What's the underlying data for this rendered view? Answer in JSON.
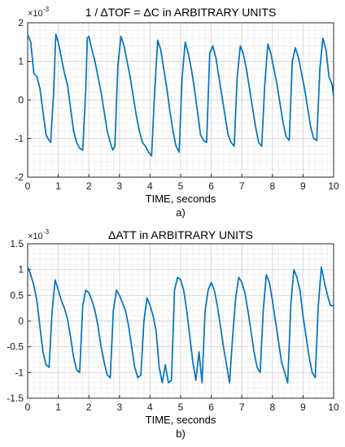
{
  "chart_data": [
    {
      "type": "line",
      "title": "1 / ΔTOF = ΔC in ARBITRARY UNITS",
      "xlabel": "TIME, seconds",
      "panel_label": "a)",
      "y_exponent": "×10",
      "y_exponent_power": "-3",
      "xlim": [
        0,
        10
      ],
      "ylim": [
        -2,
        2
      ],
      "x_ticks": [
        "0",
        "1",
        "2",
        "3",
        "4",
        "5",
        "6",
        "7",
        "8",
        "9",
        "10"
      ],
      "y_ticks": [
        "-2",
        "-1",
        "0",
        "1",
        "2"
      ],
      "grid": true,
      "minor_grid": true,
      "line_color": "#0072BD",
      "series": [
        {
          "x": [
            0.0,
            0.1,
            0.2,
            0.3,
            0.4,
            0.5,
            0.6,
            0.7,
            0.75,
            0.85,
            0.92,
            1.0,
            1.1,
            1.2,
            1.3,
            1.4,
            1.5,
            1.6,
            1.7,
            1.8,
            1.9,
            1.95,
            2.0,
            2.1,
            2.2,
            2.3,
            2.4,
            2.5,
            2.6,
            2.7,
            2.78,
            2.85,
            2.95,
            3.05,
            3.15,
            3.25,
            3.35,
            3.45,
            3.55,
            3.65,
            3.75,
            3.85,
            3.95,
            4.05,
            4.15,
            4.25,
            4.35,
            4.45,
            4.55,
            4.65,
            4.75,
            4.85,
            4.95,
            5.05,
            5.15,
            5.25,
            5.35,
            5.45,
            5.55,
            5.65,
            5.75,
            5.85,
            5.95,
            6.05,
            6.15,
            6.25,
            6.35,
            6.45,
            6.55,
            6.65,
            6.75,
            6.85,
            6.95,
            7.05,
            7.15,
            7.25,
            7.35,
            7.45,
            7.55,
            7.65,
            7.75,
            7.85,
            7.95,
            8.05,
            8.15,
            8.25,
            8.35,
            8.45,
            8.55,
            8.65,
            8.75,
            8.85,
            8.95,
            9.05,
            9.15,
            9.25,
            9.35,
            9.45,
            9.55,
            9.65,
            9.75,
            9.85,
            9.95,
            10.0
          ],
          "y": [
            1.7,
            1.5,
            0.7,
            0.6,
            0.3,
            -0.3,
            -0.9,
            -1.05,
            -1.1,
            0.2,
            1.7,
            1.5,
            1.1,
            0.7,
            0.4,
            -0.2,
            -0.8,
            -1.1,
            -1.25,
            -1.3,
            0.3,
            1.6,
            1.65,
            1.3,
            1.0,
            0.6,
            0.2,
            -0.3,
            -0.8,
            -1.1,
            -1.3,
            -1.2,
            0.9,
            1.65,
            1.4,
            1.0,
            0.6,
            0.1,
            -0.4,
            -0.8,
            -1.1,
            -1.2,
            -1.35,
            -1.45,
            0.2,
            1.55,
            1.3,
            0.8,
            0.3,
            -0.3,
            -0.8,
            -1.2,
            -1.35,
            0.6,
            1.5,
            1.2,
            0.8,
            0.3,
            -0.3,
            -0.9,
            -1.05,
            -1.1,
            1.2,
            1.4,
            1.1,
            0.6,
            0.1,
            -0.4,
            -0.9,
            -1.1,
            -1.2,
            0.6,
            1.4,
            1.2,
            0.8,
            0.3,
            -0.2,
            -0.7,
            -1.1,
            -1.2,
            0.4,
            1.45,
            1.2,
            0.8,
            0.4,
            -0.1,
            -0.6,
            -0.95,
            -1.05,
            1.0,
            1.35,
            1.1,
            0.7,
            0.3,
            -0.2,
            -0.7,
            -1.0,
            -1.05,
            0.8,
            1.6,
            1.3,
            0.6,
            0.4,
            0.1
          ]
        }
      ]
    },
    {
      "type": "line",
      "title": "ΔATT in ARBITRARY UNITS",
      "xlabel": "TIME, seconds",
      "panel_label": "b)",
      "y_exponent": "×10",
      "y_exponent_power": "-3",
      "xlim": [
        0,
        10
      ],
      "ylim": [
        -1.5,
        1.5
      ],
      "x_ticks": [
        "0",
        "1",
        "2",
        "3",
        "4",
        "5",
        "6",
        "7",
        "8",
        "9",
        "10"
      ],
      "y_ticks": [
        "-1.5",
        "-1",
        "-0.5",
        "0",
        "0.5",
        "1",
        "1.5"
      ],
      "grid": true,
      "minor_grid": true,
      "line_color": "#0072BD",
      "series": [
        {
          "x": [
            0.0,
            0.1,
            0.2,
            0.3,
            0.4,
            0.5,
            0.6,
            0.7,
            0.8,
            0.9,
            1.0,
            1.1,
            1.2,
            1.3,
            1.4,
            1.5,
            1.6,
            1.7,
            1.8,
            1.9,
            2.0,
            2.1,
            2.2,
            2.3,
            2.4,
            2.5,
            2.6,
            2.7,
            2.8,
            2.9,
            3.0,
            3.1,
            3.2,
            3.3,
            3.4,
            3.5,
            3.6,
            3.7,
            3.8,
            3.9,
            4.0,
            4.1,
            4.2,
            4.3,
            4.4,
            4.5,
            4.6,
            4.7,
            4.8,
            4.9,
            5.0,
            5.1,
            5.2,
            5.3,
            5.4,
            5.5,
            5.6,
            5.7,
            5.8,
            5.9,
            6.0,
            6.1,
            6.2,
            6.3,
            6.4,
            6.5,
            6.6,
            6.7,
            6.8,
            6.9,
            7.0,
            7.1,
            7.2,
            7.3,
            7.4,
            7.5,
            7.6,
            7.7,
            7.8,
            7.9,
            8.0,
            8.1,
            8.2,
            8.3,
            8.4,
            8.5,
            8.6,
            8.7,
            8.8,
            8.9,
            9.0,
            9.1,
            9.2,
            9.3,
            9.4,
            9.5,
            9.6,
            9.7,
            9.8,
            9.9,
            10.0
          ],
          "y": [
            1.05,
            0.9,
            0.7,
            0.4,
            -0.1,
            -0.6,
            -0.85,
            -0.9,
            0.2,
            0.8,
            0.6,
            0.4,
            0.25,
            0.05,
            -0.3,
            -0.7,
            -0.95,
            -1.0,
            0.3,
            0.6,
            0.55,
            0.4,
            0.2,
            -0.1,
            -0.5,
            -0.8,
            -1.05,
            -1.1,
            0.2,
            0.6,
            0.5,
            0.35,
            0.2,
            -0.1,
            -0.5,
            -0.9,
            -1.1,
            -1.05,
            0.0,
            0.45,
            0.3,
            0.1,
            -0.2,
            -0.9,
            -1.2,
            -0.85,
            -1.2,
            -1.15,
            0.6,
            0.85,
            0.8,
            0.6,
            0.2,
            -0.3,
            -0.8,
            -1.15,
            -0.6,
            -1.2,
            0.2,
            0.6,
            0.75,
            0.6,
            0.3,
            -0.1,
            -0.5,
            -0.85,
            -1.2,
            -0.3,
            0.45,
            0.85,
            0.75,
            0.55,
            0.2,
            -0.2,
            -0.6,
            -0.9,
            -1.0,
            0.2,
            0.9,
            0.75,
            0.4,
            0.0,
            -0.4,
            -0.8,
            -1.0,
            -1.2,
            0.3,
            1.0,
            0.85,
            0.6,
            0.1,
            -0.3,
            -0.7,
            -1.0,
            -1.1,
            0.3,
            1.05,
            0.75,
            0.5,
            0.3,
            0.3
          ]
        }
      ]
    }
  ]
}
